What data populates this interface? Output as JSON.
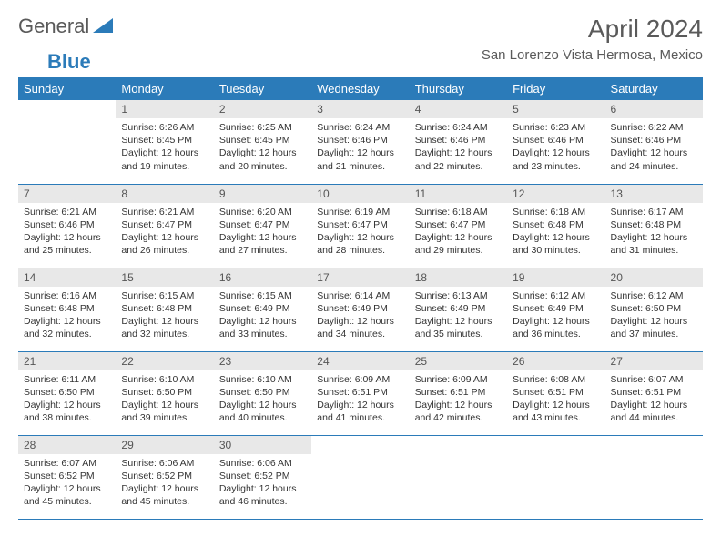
{
  "logo": {
    "text1": "General",
    "text2": "Blue"
  },
  "title": "April 2024",
  "location": "San Lorenzo Vista Hermosa, Mexico",
  "colors": {
    "header_bg": "#2b7bb9",
    "header_text": "#ffffff",
    "daynum_bg": "#e8e8e8",
    "border": "#2b7bb9",
    "text": "#333333"
  },
  "dayNames": [
    "Sunday",
    "Monday",
    "Tuesday",
    "Wednesday",
    "Thursday",
    "Friday",
    "Saturday"
  ],
  "weeks": [
    [
      null,
      {
        "n": "1",
        "sr": "6:26 AM",
        "ss": "6:45 PM",
        "dl": "12 hours and 19 minutes."
      },
      {
        "n": "2",
        "sr": "6:25 AM",
        "ss": "6:45 PM",
        "dl": "12 hours and 20 minutes."
      },
      {
        "n": "3",
        "sr": "6:24 AM",
        "ss": "6:46 PM",
        "dl": "12 hours and 21 minutes."
      },
      {
        "n": "4",
        "sr": "6:24 AM",
        "ss": "6:46 PM",
        "dl": "12 hours and 22 minutes."
      },
      {
        "n": "5",
        "sr": "6:23 AM",
        "ss": "6:46 PM",
        "dl": "12 hours and 23 minutes."
      },
      {
        "n": "6",
        "sr": "6:22 AM",
        "ss": "6:46 PM",
        "dl": "12 hours and 24 minutes."
      }
    ],
    [
      {
        "n": "7",
        "sr": "6:21 AM",
        "ss": "6:46 PM",
        "dl": "12 hours and 25 minutes."
      },
      {
        "n": "8",
        "sr": "6:21 AM",
        "ss": "6:47 PM",
        "dl": "12 hours and 26 minutes."
      },
      {
        "n": "9",
        "sr": "6:20 AM",
        "ss": "6:47 PM",
        "dl": "12 hours and 27 minutes."
      },
      {
        "n": "10",
        "sr": "6:19 AM",
        "ss": "6:47 PM",
        "dl": "12 hours and 28 minutes."
      },
      {
        "n": "11",
        "sr": "6:18 AM",
        "ss": "6:47 PM",
        "dl": "12 hours and 29 minutes."
      },
      {
        "n": "12",
        "sr": "6:18 AM",
        "ss": "6:48 PM",
        "dl": "12 hours and 30 minutes."
      },
      {
        "n": "13",
        "sr": "6:17 AM",
        "ss": "6:48 PM",
        "dl": "12 hours and 31 minutes."
      }
    ],
    [
      {
        "n": "14",
        "sr": "6:16 AM",
        "ss": "6:48 PM",
        "dl": "12 hours and 32 minutes."
      },
      {
        "n": "15",
        "sr": "6:15 AM",
        "ss": "6:48 PM",
        "dl": "12 hours and 32 minutes."
      },
      {
        "n": "16",
        "sr": "6:15 AM",
        "ss": "6:49 PM",
        "dl": "12 hours and 33 minutes."
      },
      {
        "n": "17",
        "sr": "6:14 AM",
        "ss": "6:49 PM",
        "dl": "12 hours and 34 minutes."
      },
      {
        "n": "18",
        "sr": "6:13 AM",
        "ss": "6:49 PM",
        "dl": "12 hours and 35 minutes."
      },
      {
        "n": "19",
        "sr": "6:12 AM",
        "ss": "6:49 PM",
        "dl": "12 hours and 36 minutes."
      },
      {
        "n": "20",
        "sr": "6:12 AM",
        "ss": "6:50 PM",
        "dl": "12 hours and 37 minutes."
      }
    ],
    [
      {
        "n": "21",
        "sr": "6:11 AM",
        "ss": "6:50 PM",
        "dl": "12 hours and 38 minutes."
      },
      {
        "n": "22",
        "sr": "6:10 AM",
        "ss": "6:50 PM",
        "dl": "12 hours and 39 minutes."
      },
      {
        "n": "23",
        "sr": "6:10 AM",
        "ss": "6:50 PM",
        "dl": "12 hours and 40 minutes."
      },
      {
        "n": "24",
        "sr": "6:09 AM",
        "ss": "6:51 PM",
        "dl": "12 hours and 41 minutes."
      },
      {
        "n": "25",
        "sr": "6:09 AM",
        "ss": "6:51 PM",
        "dl": "12 hours and 42 minutes."
      },
      {
        "n": "26",
        "sr": "6:08 AM",
        "ss": "6:51 PM",
        "dl": "12 hours and 43 minutes."
      },
      {
        "n": "27",
        "sr": "6:07 AM",
        "ss": "6:51 PM",
        "dl": "12 hours and 44 minutes."
      }
    ],
    [
      {
        "n": "28",
        "sr": "6:07 AM",
        "ss": "6:52 PM",
        "dl": "12 hours and 45 minutes."
      },
      {
        "n": "29",
        "sr": "6:06 AM",
        "ss": "6:52 PM",
        "dl": "12 hours and 45 minutes."
      },
      {
        "n": "30",
        "sr": "6:06 AM",
        "ss": "6:52 PM",
        "dl": "12 hours and 46 minutes."
      },
      null,
      null,
      null,
      null
    ]
  ],
  "labels": {
    "sunrise": "Sunrise:",
    "sunset": "Sunset:",
    "daylight": "Daylight:"
  }
}
